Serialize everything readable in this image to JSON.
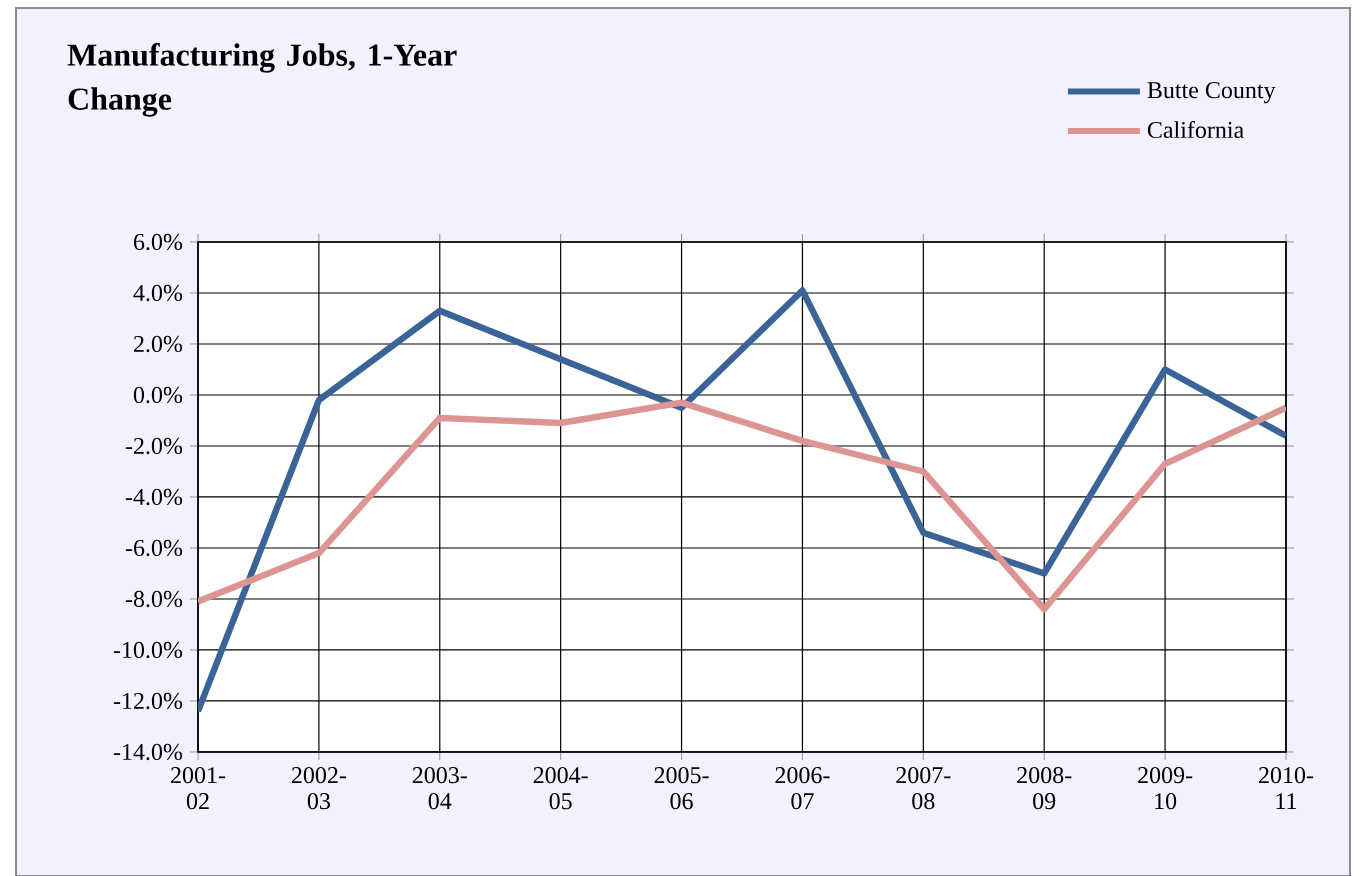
{
  "chart_data": {
    "type": "line",
    "title": "Manufacturing Jobs, 1-Year Change",
    "categories": [
      "2001-02",
      "2002-03",
      "2003-04",
      "2004-05",
      "2005-06",
      "2006-07",
      "2007-08",
      "2008-09",
      "2009-10",
      "2010-11"
    ],
    "series": [
      {
        "name": "Butte County",
        "color": "#3a6498",
        "values": [
          -12.4,
          -0.2,
          3.3,
          1.4,
          -0.5,
          4.1,
          -5.4,
          -7.0,
          1.0,
          -1.6
        ]
      },
      {
        "name": "California",
        "color": "#dc9592",
        "values": [
          -8.1,
          -6.2,
          -0.9,
          -1.1,
          -0.3,
          -1.8,
          -3.0,
          -8.4,
          -2.7,
          -0.5
        ]
      }
    ],
    "ylim": [
      -14,
      6
    ],
    "yticks": [
      {
        "value": -14,
        "label": "-14.0%"
      },
      {
        "value": -12,
        "label": "-12.0%"
      },
      {
        "value": -10,
        "label": "-10.0%"
      },
      {
        "value": -8,
        "label": "-8.0%"
      },
      {
        "value": -6,
        "label": "-6.0%"
      },
      {
        "value": -4,
        "label": "-4.0%"
      },
      {
        "value": -2,
        "label": "-2.0%"
      },
      {
        "value": 0,
        "label": "0.0%"
      },
      {
        "value": 2,
        "label": "2.0%"
      },
      {
        "value": 4,
        "label": "4.0%"
      },
      {
        "value": 6,
        "label": "6.0%"
      }
    ],
    "grid": true,
    "legend": "top right",
    "marker": "none",
    "line_style": "solid"
  }
}
